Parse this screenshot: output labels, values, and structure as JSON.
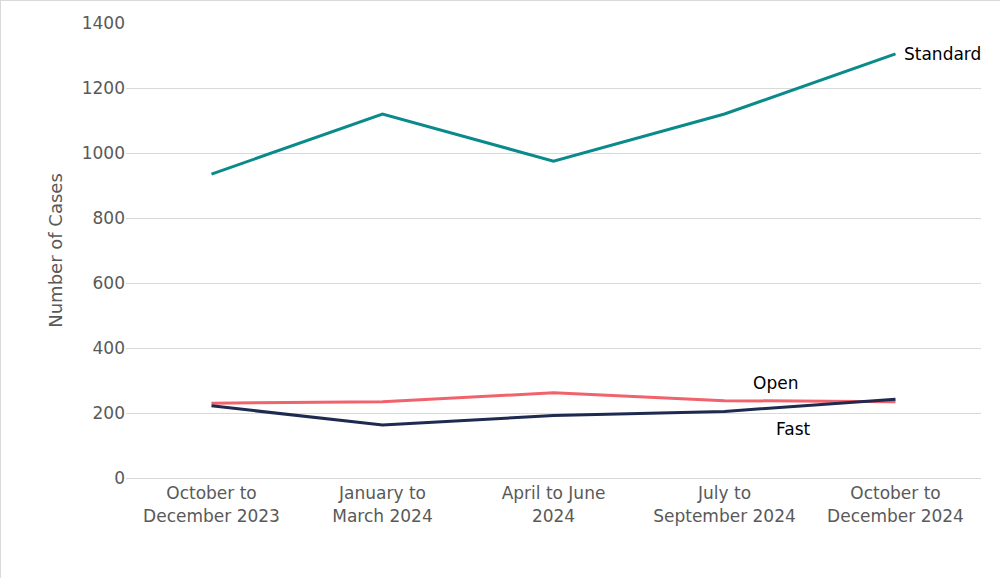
{
  "chart_data": {
    "type": "line",
    "y_label": "Number of Cases",
    "categories": [
      "October to December 2023",
      "January to March 2024",
      "April to June 2024",
      "July to September 2024",
      "October to December 2024"
    ],
    "series": [
      {
        "name": "Standard",
        "color": "#0b8a8c",
        "values": [
          935,
          1120,
          975,
          1120,
          1305
        ]
      },
      {
        "name": "Open",
        "color": "#f0626c",
        "values": [
          230,
          235,
          262,
          238,
          235
        ]
      },
      {
        "name": "Fast",
        "color": "#1e2a4f",
        "values": [
          222,
          163,
          192,
          205,
          242
        ]
      }
    ],
    "ylim": [
      0,
      1400
    ],
    "yticks": [
      0,
      200,
      400,
      600,
      800,
      1000,
      1200,
      1400
    ],
    "grid": true
  }
}
